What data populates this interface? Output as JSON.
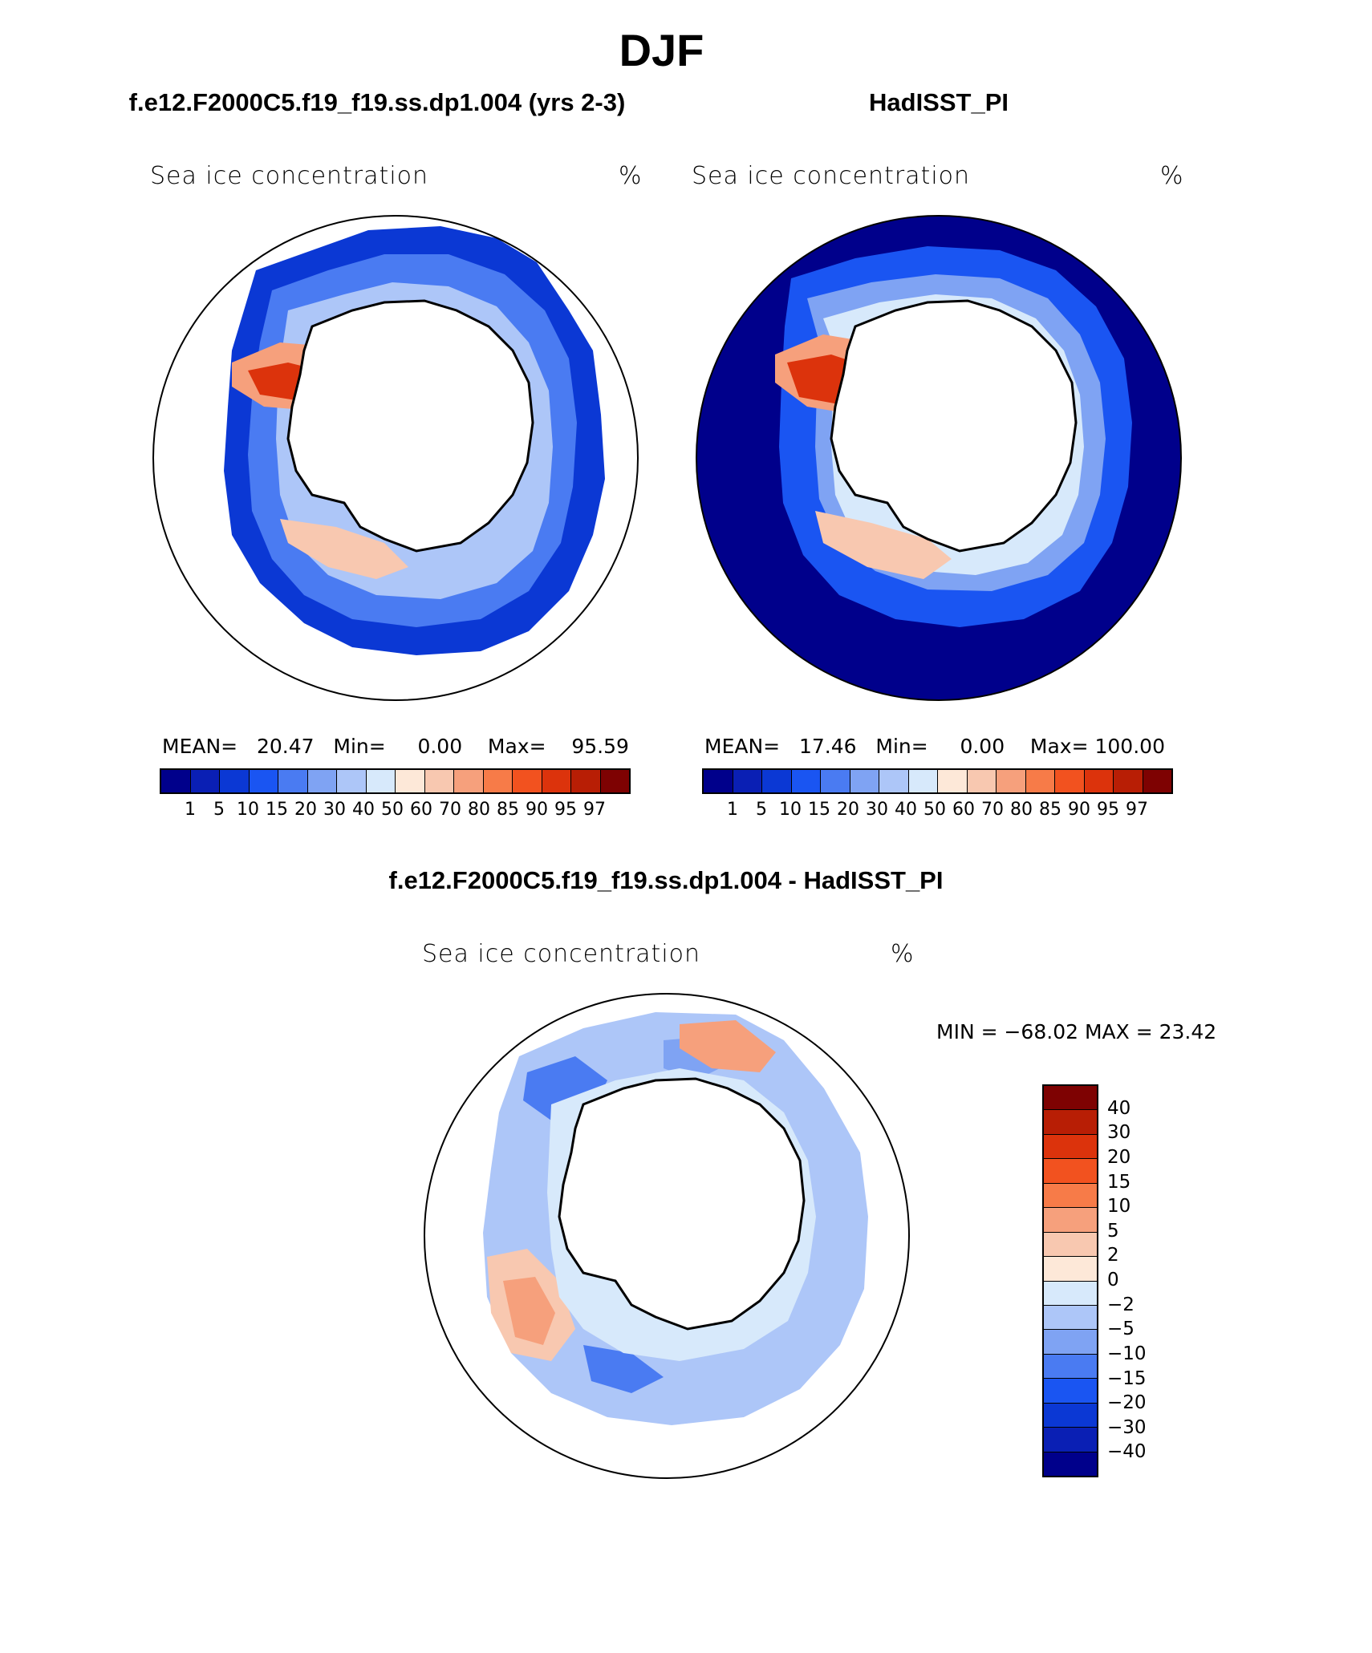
{
  "title": "DJF",
  "panels": {
    "left": {
      "title": "f.e12.F2000C5.f19_f19.ss.dp1.004 (yrs 2-3)",
      "variable": "Sea ice concentration",
      "unit": "%",
      "stats": {
        "mean_label": "MEAN=",
        "mean": "20.47",
        "min_label": "Min=",
        "min": "0.00",
        "max_label": "Max=",
        "max": "95.59"
      }
    },
    "right": {
      "title": "HadISST_PI",
      "variable": "Sea ice concentration",
      "unit": "%",
      "stats": {
        "mean_label": "MEAN=",
        "mean": "17.46",
        "min_label": "Min=",
        "min": "0.00",
        "max_label": "Max=",
        "max": "100.00"
      }
    },
    "diff": {
      "title": "f.e12.F2000C5.f19_f19.ss.dp1.004 - HadISST_PI",
      "variable": "Sea ice concentration",
      "unit": "%",
      "minmax": "MIN = −68.02 MAX =   23.42"
    }
  },
  "colorbar_abs": {
    "colors": [
      "#00008b",
      "#0a1fb4",
      "#0b38d4",
      "#1a55f2",
      "#4a7bf2",
      "#7fa3f3",
      "#adc6f8",
      "#d7e9fb",
      "#fde8d8",
      "#f8c8b0",
      "#f6a07c",
      "#f77b48",
      "#f2521f",
      "#dc330c",
      "#b81e05",
      "#7e0202"
    ],
    "ticks": [
      "1",
      "5",
      "10",
      "15",
      "20",
      "30",
      "40",
      "50",
      "60",
      "70",
      "80",
      "85",
      "90",
      "95",
      "97"
    ]
  },
  "colorbar_diff": {
    "colors": [
      "#7e0202",
      "#b81e05",
      "#dc330c",
      "#f2521f",
      "#f77b48",
      "#f6a07c",
      "#f8c8b0",
      "#fde8d8",
      "#d7e9fb",
      "#adc6f8",
      "#7fa3f3",
      "#4a7bf2",
      "#1a55f2",
      "#0b38d4",
      "#0a1fb4",
      "#00008b"
    ],
    "ticks": [
      "40",
      "30",
      "20",
      "15",
      "10",
      "5",
      "2",
      "0",
      "−2",
      "−5",
      "−10",
      "−15",
      "−20",
      "−30",
      "−40"
    ]
  }
}
